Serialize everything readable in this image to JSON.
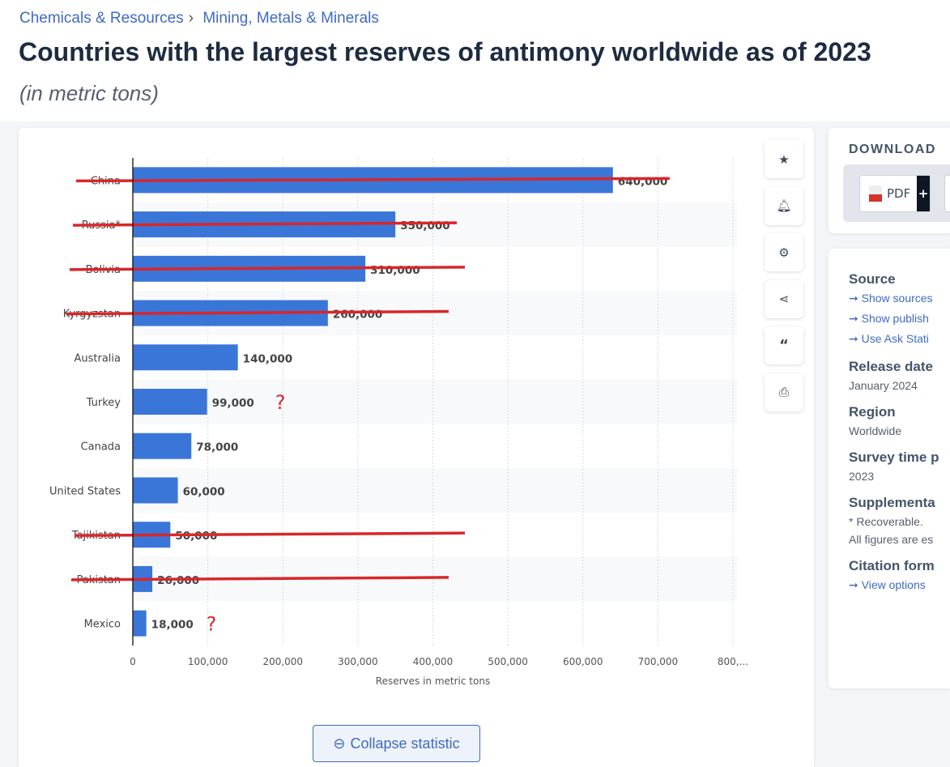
{
  "breadcrumb": [
    "Chemicals & Resources",
    "Mining, Metals & Minerals"
  ],
  "title": "Countries with the largest reserves of antimony worldwide as of 2023",
  "subtitle": "(in metric tons)",
  "chart_data": {
    "type": "bar",
    "orientation": "horizontal",
    "categories": [
      "China",
      "Russia*",
      "Bolivia",
      "Kyrgyzstan",
      "Australia",
      "Turkey",
      "Canada",
      "United States",
      "Tajikistan",
      "Pakistan",
      "Mexico"
    ],
    "values": [
      640000,
      350000,
      310000,
      260000,
      140000,
      99000,
      78000,
      60000,
      50000,
      26000,
      18000
    ],
    "value_labels": [
      "640,000",
      "350,000",
      "310,000",
      "260,000",
      "140,000",
      "99,000",
      "78,000",
      "60,000",
      "50,000",
      "26,000",
      "18,000"
    ],
    "xlabel": "Reserves in metric tons",
    "xlim": [
      0,
      800000
    ],
    "ticks": [
      "0",
      "100,000",
      "200,000",
      "300,000",
      "400,000",
      "500,000",
      "600,000",
      "700,000",
      "800,..."
    ],
    "grid": true,
    "bar_color": "#3a76d8",
    "annotations": {
      "struck_through": [
        "China",
        "Russia*",
        "Bolivia",
        "Kyrgyzstan",
        "Tajikistan",
        "Pakistan"
      ],
      "question_marks": {
        "Turkey": "?",
        "Mexico": "?"
      },
      "mark_color": "#d9262b"
    }
  },
  "tools": [
    "star-icon",
    "bell-icon",
    "gear-icon",
    "share-icon",
    "quote-icon",
    "print-icon"
  ],
  "collapse_label": "Collapse statistic",
  "download": {
    "heading": "DOWNLOAD",
    "pdf_label": "PDF",
    "plus": "+"
  },
  "info": {
    "source_heading": "Source",
    "links": [
      "Show sources",
      "Show publish",
      "Use Ask Stati"
    ],
    "release_heading": "Release date",
    "release": "January 2024",
    "region_heading": "Region",
    "region": "Worldwide",
    "survey_heading": "Survey time p",
    "survey": "2023",
    "supp_heading": "Supplementa",
    "supp1": "* Recoverable.",
    "supp2": "All figures are es",
    "citation_heading": "Citation form",
    "citation_link": "View options"
  }
}
